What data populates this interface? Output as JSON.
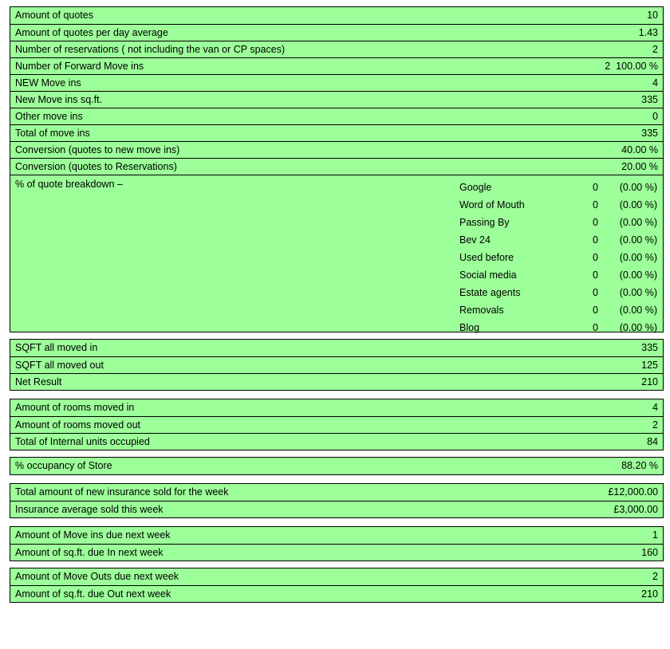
{
  "section1": [
    {
      "label": "Amount of quotes",
      "value": "10"
    },
    {
      "label": "Amount of quotes per day average",
      "value": "1.43"
    },
    {
      "label": "Number of reservations ( not including the van or CP spaces)",
      "value": "2"
    },
    {
      "label": "Number of Forward Move ins",
      "value": "2  100.00 %"
    },
    {
      "label": "NEW Move ins",
      "value": "4"
    },
    {
      "label": "New Move ins sq.ft.",
      "value": "335"
    },
    {
      "label": "Other move ins",
      "value": "0"
    },
    {
      "label": "Total of move ins",
      "value": "335"
    },
    {
      "label": "Conversion (quotes to new move ins)",
      "value": "40.00 %"
    },
    {
      "label": "Conversion (quotes to Reservations)",
      "value": "20.00 %"
    }
  ],
  "breakdown": {
    "title": "% of quote breakdown –",
    "sources": [
      {
        "name": "Google",
        "count": "0",
        "pct": "(0.00 %)"
      },
      {
        "name": "Word of Mouth",
        "count": "0",
        "pct": "(0.00 %)"
      },
      {
        "name": "Passing By",
        "count": "0",
        "pct": "(0.00 %)"
      },
      {
        "name": "Bev 24",
        "count": "0",
        "pct": "(0.00 %)"
      },
      {
        "name": "Used before",
        "count": "0",
        "pct": "(0.00 %)"
      },
      {
        "name": "Social media",
        "count": "0",
        "pct": "(0.00 %)"
      },
      {
        "name": "Estate agents",
        "count": "0",
        "pct": "(0.00 %)"
      },
      {
        "name": "Removals",
        "count": "0",
        "pct": "(0.00 %)"
      },
      {
        "name": "Blog",
        "count": "0",
        "pct": "(0.00 %)"
      }
    ]
  },
  "sqft": [
    {
      "label": "SQFT all moved in",
      "value": "335"
    },
    {
      "label": "SQFT all moved out",
      "value": "125"
    },
    {
      "label": "Net Result",
      "value": "210"
    }
  ],
  "rooms": [
    {
      "label": "Amount of rooms moved in",
      "value": "4"
    },
    {
      "label": "Amount of rooms moved out",
      "value": "2"
    },
    {
      "label": "Total of Internal units occupied",
      "value": "84"
    }
  ],
  "occupancy": [
    {
      "label": "% occupancy of Store",
      "value": "88.20 %"
    }
  ],
  "insurance": [
    {
      "label": "Total amount of new insurance sold for the week",
      "value": "£12,000.00"
    },
    {
      "label": "Insurance average sold this week",
      "value": "£3,000.00"
    }
  ],
  "movein_next": [
    {
      "label": "Amount of Move ins due next week",
      "value": "1"
    },
    {
      "label": "Amount of sq.ft. due In next week",
      "value": "160"
    }
  ],
  "moveout_next": [
    {
      "label": "Amount of Move Outs due next week",
      "value": "2"
    },
    {
      "label": "Amount of sq.ft. due Out next week",
      "value": "210"
    }
  ]
}
